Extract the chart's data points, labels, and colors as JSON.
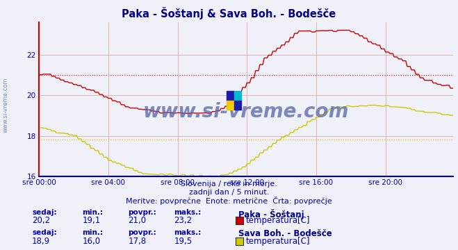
{
  "title": "Paka - Šoštanj & Sava Boh. - Bodešče",
  "title_color": "#000080",
  "bg_color": "#f0f0f8",
  "plot_bg_color": "#f0f0f8",
  "grid_color": "#ddaaaa",
  "ylim": [
    16,
    23.6
  ],
  "yticks": [
    16,
    18,
    20,
    22
  ],
  "xlabel_color": "#0000aa",
  "ylabel_color": "#0000aa",
  "xtick_labels": [
    "sre 00:00",
    "sre 04:00",
    "sre 08:00",
    "sre 12:00",
    "sre 16:00",
    "sre 20:00"
  ],
  "watermark": "www.si-vreme.com",
  "watermark_color": "#5566aa",
  "subtitle1": "Slovenija / reke in morje.",
  "subtitle2": "zadnji dan / 5 minut.",
  "subtitle3": "Meritve: povprečne  Enote: metrične  Črta: povprečje",
  "subtitle_color": "#0000aa",
  "legend_label1": "Paka - Šoštanj",
  "legend_label2": "Sava Boh. - Bodešče",
  "legend_sublabel1": "temperatura[C]",
  "legend_sublabel2": "temperatura[C]",
  "stats1_sedaj": "20,2",
  "stats1_min": "19,1",
  "stats1_povpr": "21,0",
  "stats1_maks": "23,2",
  "stats2_sedaj": "18,9",
  "stats2_min": "16,0",
  "stats2_povpr": "17,8",
  "stats2_maks": "19,5",
  "color1": "#cc0000",
  "color2": "#cccc00",
  "avg1": 21.0,
  "avg2": 17.8,
  "n_points": 288,
  "left_label": "www.si-vreme.com"
}
